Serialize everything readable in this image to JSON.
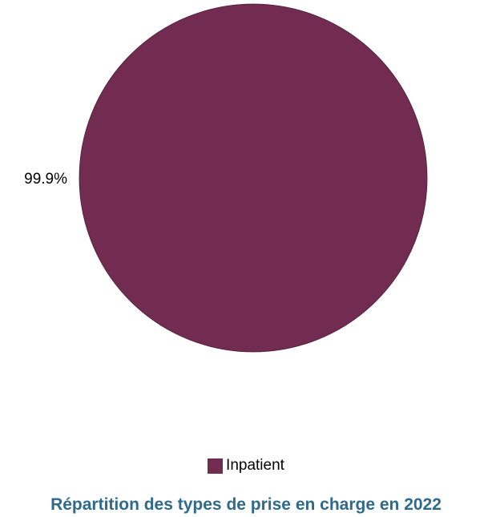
{
  "chart_data": {
    "type": "pie",
    "title": "Répartition des types de prise en charge en 2022",
    "slices": [
      {
        "name": "Inpatient",
        "value": 99.9,
        "label": "99.9%",
        "color": "#722c51"
      }
    ],
    "legend": {
      "placement": "bottom",
      "entries": [
        "Inpatient"
      ]
    }
  }
}
